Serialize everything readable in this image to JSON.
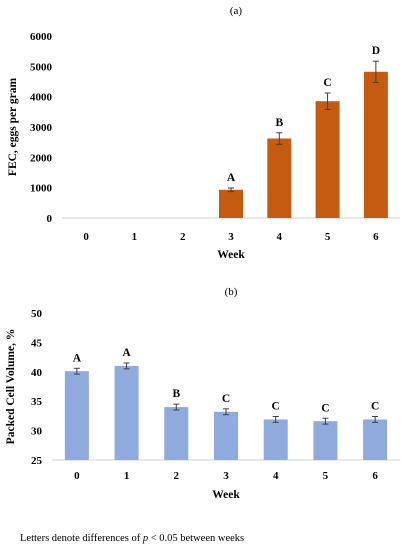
{
  "footnote": {
    "before": "Letters denote differences of ",
    "italic": "p",
    "after": " < 0.05 between weeks"
  },
  "chart_data": [
    {
      "type": "bar",
      "panel_label": "(a)",
      "categories": [
        "0",
        "1",
        "2",
        "3",
        "4",
        "5",
        "6"
      ],
      "values": [
        0,
        0,
        0,
        930,
        2620,
        3850,
        4820
      ],
      "errors": [
        0,
        0,
        0,
        60,
        190,
        270,
        350
      ],
      "letters": [
        "",
        "",
        "",
        "A",
        "B",
        "C",
        "D"
      ],
      "xlabel": "Week",
      "ylabel": "FEC, eggs per gram",
      "ylim": [
        0,
        6000
      ],
      "yticks": [
        0,
        1000,
        2000,
        3000,
        4000,
        5000,
        6000
      ],
      "bar_color": "#c55a11",
      "grid": false
    },
    {
      "type": "bar",
      "panel_label": "(b)",
      "categories": [
        "0",
        "1",
        "2",
        "3",
        "4",
        "5",
        "6"
      ],
      "values": [
        40.1,
        41.0,
        34.0,
        33.2,
        31.9,
        31.6,
        31.9
      ],
      "errors": [
        0.5,
        0.5,
        0.5,
        0.5,
        0.5,
        0.5,
        0.5
      ],
      "letters": [
        "A",
        "A",
        "B",
        "C",
        "C",
        "C",
        "C"
      ],
      "xlabel": "Week",
      "ylabel": "Packed Cell Volume, %",
      "ylim": [
        25,
        50
      ],
      "yticks": [
        25,
        30,
        35,
        40,
        45,
        50
      ],
      "bar_color": "#8faadc",
      "grid": false
    }
  ]
}
